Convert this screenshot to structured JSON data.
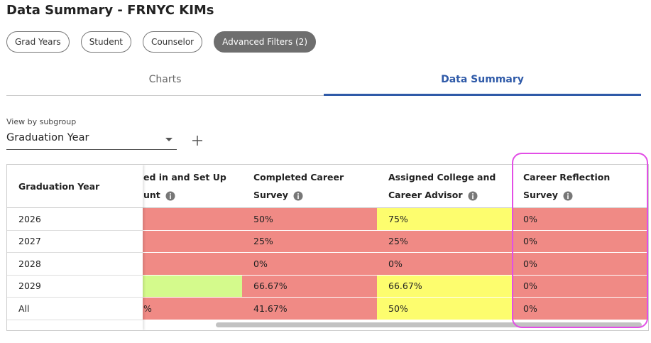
{
  "header": {
    "title": "Data Summary - FRNYC KIMs"
  },
  "filters": [
    "Grad Years",
    "Student",
    "Counselor",
    "Advanced Filters (2)"
  ],
  "tabs": [
    "Charts",
    "Data Summary"
  ],
  "subgroup": {
    "label": "View by subgroup",
    "value": "Graduation Year"
  },
  "table": {
    "columns": [
      {
        "lines": [
          "Graduation Year"
        ]
      },
      {
        "lines": [
          "ed in and Set Up",
          "unt"
        ]
      },
      {
        "lines": [
          "Completed Career",
          "Survey"
        ]
      },
      {
        "lines": [
          "Assigned College and",
          "Career Advisor"
        ]
      },
      {
        "lines": [
          "Career Reflection",
          "Survey"
        ]
      }
    ],
    "rows": [
      {
        "label": "2026",
        "cells": [
          {
            "color": "#f08a85"
          },
          {
            "text": "50%",
            "color": "#f08a85"
          },
          {
            "text": "75%",
            "color": "#fdfd6e"
          },
          {
            "text": "0%",
            "color": "#f08a85"
          }
        ]
      },
      {
        "label": "2027",
        "cells": [
          {
            "color": "#f08a85"
          },
          {
            "text": "25%",
            "color": "#f08a85"
          },
          {
            "text": "25%",
            "color": "#f08a85"
          },
          {
            "text": "0%",
            "color": "#f08a85"
          }
        ]
      },
      {
        "label": "2028",
        "cells": [
          {
            "color": "#f08a85"
          },
          {
            "text": "0%",
            "color": "#f08a85"
          },
          {
            "text": "0%",
            "color": "#f08a85"
          },
          {
            "text": "0%",
            "color": "#f08a85"
          }
        ]
      },
      {
        "label": "2029",
        "cells": [
          {
            "color": "#d4fa8c"
          },
          {
            "text": "66.67%",
            "color": "#f08a85"
          },
          {
            "text": "66.67%",
            "color": "#fdfd6e"
          },
          {
            "text": "0%",
            "color": "#f08a85"
          }
        ]
      },
      {
        "label": "All",
        "cells": [
          {
            "text": "%",
            "color": "#f08a85"
          },
          {
            "text": "41.67%",
            "color": "#f08a85"
          },
          {
            "text": "50%",
            "color": "#fdfd6e"
          },
          {
            "text": "0%",
            "color": "#f08a85"
          }
        ]
      }
    ]
  }
}
